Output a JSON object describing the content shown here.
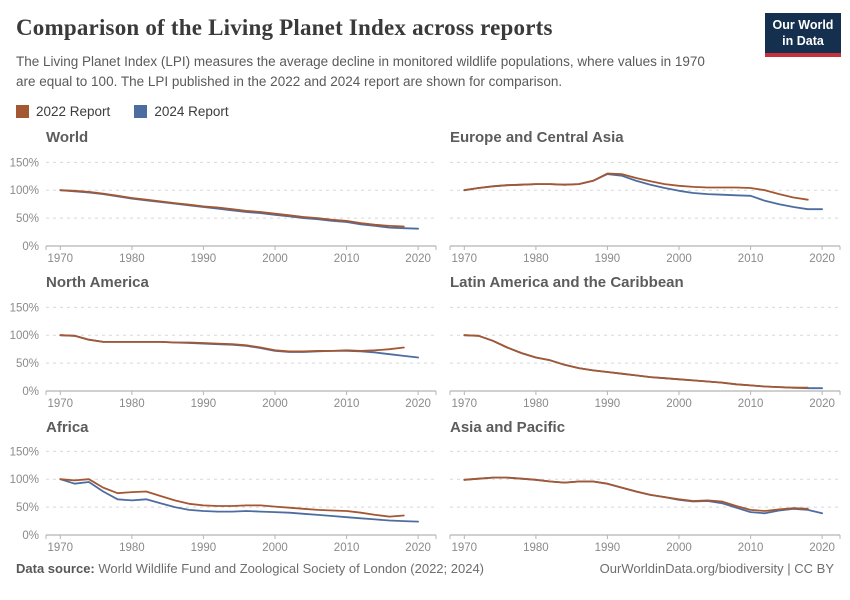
{
  "header": {
    "title": "Comparison of the Living Planet Index across reports",
    "subtitle": "The Living Planet Index (LPI) measures the average decline in monitored wildlife populations, where values in 1970 are equal to 100. The LPI published in the 2022 and 2024 report are shown for comparison.",
    "logo": {
      "line1": "Our World",
      "line2": "in Data"
    }
  },
  "legend": [
    {
      "label": "2022 Report",
      "color": "#A35732"
    },
    {
      "label": "2024 Report",
      "color": "#4D6DA0"
    }
  ],
  "colors": {
    "report_2022": "#A35732",
    "report_2024": "#4D6DA0",
    "logo_background": "#15304E",
    "logo_accent": "#C5303C",
    "gridline": "#d8d8d8",
    "axis": "#a0a0a0"
  },
  "footer": {
    "source_label": "Data source:",
    "source_text": " World Wildlife Fund and Zoological Society of London (2022; 2024)",
    "right_text": "OurWorldinData.org/biodiversity | CC BY"
  },
  "chart_data": [
    {
      "title": "World",
      "type": "line",
      "x_range": [
        1968,
        2022.5
      ],
      "y_range": [
        0,
        165
      ],
      "x_ticks": [
        1970,
        1980,
        1990,
        2000,
        2010,
        2020
      ],
      "y_ticks": [
        0,
        50,
        100,
        150
      ],
      "y_tick_suffix": "%",
      "show_y_labels": true,
      "grid": true,
      "series": [
        {
          "name": "2022 Report",
          "color": "#A35732",
          "start_year": 1970,
          "step_years": 2,
          "values": [
            100,
            99,
            97,
            94,
            90,
            86,
            83,
            80,
            77,
            74,
            71,
            69,
            66,
            63,
            61,
            58,
            55,
            52,
            50,
            47,
            45,
            41,
            38,
            36,
            35
          ]
        },
        {
          "name": "2024 Report",
          "color": "#4D6DA0",
          "start_year": 1970,
          "step_years": 2,
          "values": [
            100,
            98,
            96,
            93,
            89,
            85,
            82,
            79,
            76,
            73,
            70,
            67,
            64,
            61,
            59,
            56,
            53,
            50,
            48,
            45,
            43,
            39,
            36,
            33,
            32,
            31
          ]
        }
      ]
    },
    {
      "title": "Europe and Central Asia",
      "type": "line",
      "x_range": [
        1968,
        2022.5
      ],
      "y_range": [
        0,
        165
      ],
      "x_ticks": [
        1970,
        1980,
        1990,
        2000,
        2010,
        2020
      ],
      "y_ticks": [
        0,
        50,
        100,
        150
      ],
      "y_tick_suffix": "%",
      "show_y_labels": false,
      "grid": true,
      "series": [
        {
          "name": "2022 Report",
          "color": "#A35732",
          "start_year": 1970,
          "step_years": 2,
          "values": [
            100,
            104,
            107,
            109,
            110,
            111,
            111,
            110,
            111,
            117,
            130,
            129,
            122,
            116,
            111,
            108,
            106,
            105,
            105,
            105,
            104,
            100,
            93,
            87,
            83
          ]
        },
        {
          "name": "2024 Report",
          "color": "#4D6DA0",
          "start_year": 1970,
          "step_years": 2,
          "values": [
            100,
            104,
            107,
            109,
            110,
            111,
            111,
            110,
            111,
            117,
            129,
            126,
            117,
            110,
            104,
            99,
            95,
            93,
            92,
            91,
            90,
            81,
            75,
            70,
            66,
            66
          ]
        }
      ]
    },
    {
      "title": "North America",
      "type": "line",
      "x_range": [
        1968,
        2022.5
      ],
      "y_range": [
        0,
        165
      ],
      "x_ticks": [
        1970,
        1980,
        1990,
        2000,
        2010,
        2020
      ],
      "y_ticks": [
        0,
        50,
        100,
        150
      ],
      "y_tick_suffix": "%",
      "show_y_labels": true,
      "grid": true,
      "series": [
        {
          "name": "2022 Report",
          "color": "#A35732",
          "start_year": 1970,
          "step_years": 2,
          "values": [
            100,
            99,
            92,
            88,
            88,
            88,
            88,
            88,
            87,
            87,
            86,
            85,
            84,
            82,
            78,
            73,
            71,
            71,
            72,
            72,
            73,
            72,
            73,
            75,
            78
          ]
        },
        {
          "name": "2024 Report",
          "color": "#4D6DA0",
          "start_year": 1970,
          "step_years": 2,
          "values": [
            100,
            99,
            92,
            88,
            88,
            88,
            88,
            88,
            87,
            86,
            85,
            84,
            83,
            81,
            77,
            72,
            70,
            70,
            71,
            72,
            72,
            71,
            69,
            66,
            63,
            60
          ]
        }
      ]
    },
    {
      "title": "Latin America and the Caribbean",
      "type": "line",
      "x_range": [
        1968,
        2022.5
      ],
      "y_range": [
        0,
        165
      ],
      "x_ticks": [
        1970,
        1980,
        1990,
        2000,
        2010,
        2020
      ],
      "y_ticks": [
        0,
        50,
        100,
        150
      ],
      "y_tick_suffix": "%",
      "show_y_labels": false,
      "grid": true,
      "series": [
        {
          "name": "2022 Report",
          "color": "#A35732",
          "start_year": 1970,
          "step_years": 2,
          "values": [
            100,
            99,
            90,
            78,
            68,
            60,
            55,
            47,
            41,
            37,
            34,
            31,
            28,
            25,
            23,
            21,
            19,
            17,
            15,
            12,
            10,
            8,
            7,
            6,
            6
          ]
        },
        {
          "name": "2024 Report",
          "color": "#4D6DA0",
          "start_year": 1970,
          "step_years": 2,
          "values": [
            100,
            99,
            90,
            78,
            68,
            60,
            55,
            47,
            41,
            37,
            34,
            31,
            28,
            25,
            23,
            21,
            19,
            17,
            15,
            12,
            10,
            8,
            7,
            6,
            5,
            5
          ]
        }
      ]
    },
    {
      "title": "Africa",
      "type": "line",
      "x_range": [
        1968,
        2022.5
      ],
      "y_range": [
        0,
        165
      ],
      "x_ticks": [
        1970,
        1980,
        1990,
        2000,
        2010,
        2020
      ],
      "y_ticks": [
        0,
        50,
        100,
        150
      ],
      "y_tick_suffix": "%",
      "show_y_labels": true,
      "grid": true,
      "series": [
        {
          "name": "2022 Report",
          "color": "#A35732",
          "start_year": 1970,
          "step_years": 2,
          "values": [
            100,
            98,
            100,
            85,
            75,
            77,
            78,
            70,
            62,
            56,
            53,
            52,
            52,
            53,
            53,
            51,
            49,
            47,
            45,
            44,
            43,
            40,
            36,
            33,
            35
          ]
        },
        {
          "name": "2024 Report",
          "color": "#4D6DA0",
          "start_year": 1970,
          "step_years": 2,
          "values": [
            100,
            92,
            95,
            78,
            64,
            62,
            64,
            57,
            50,
            45,
            43,
            42,
            42,
            43,
            42,
            41,
            40,
            38,
            36,
            34,
            32,
            30,
            28,
            26,
            25,
            24
          ]
        }
      ]
    },
    {
      "title": "Asia and Pacific",
      "type": "line",
      "x_range": [
        1968,
        2022.5
      ],
      "y_range": [
        0,
        165
      ],
      "x_ticks": [
        1970,
        1980,
        1990,
        2000,
        2010,
        2020
      ],
      "y_ticks": [
        0,
        50,
        100,
        150
      ],
      "y_tick_suffix": "%",
      "show_y_labels": false,
      "grid": true,
      "series": [
        {
          "name": "2022 Report",
          "color": "#A35732",
          "start_year": 1970,
          "step_years": 2,
          "values": [
            99,
            101,
            103,
            103,
            101,
            99,
            96,
            94,
            96,
            96,
            92,
            85,
            78,
            72,
            68,
            64,
            61,
            62,
            60,
            52,
            45,
            43,
            46,
            48,
            47
          ]
        },
        {
          "name": "2024 Report",
          "color": "#4D6DA0",
          "start_year": 1970,
          "step_years": 2,
          "values": [
            99,
            101,
            103,
            103,
            101,
            99,
            96,
            94,
            96,
            96,
            92,
            85,
            78,
            72,
            68,
            63,
            60,
            61,
            57,
            49,
            41,
            39,
            44,
            47,
            45,
            39
          ]
        }
      ]
    }
  ]
}
